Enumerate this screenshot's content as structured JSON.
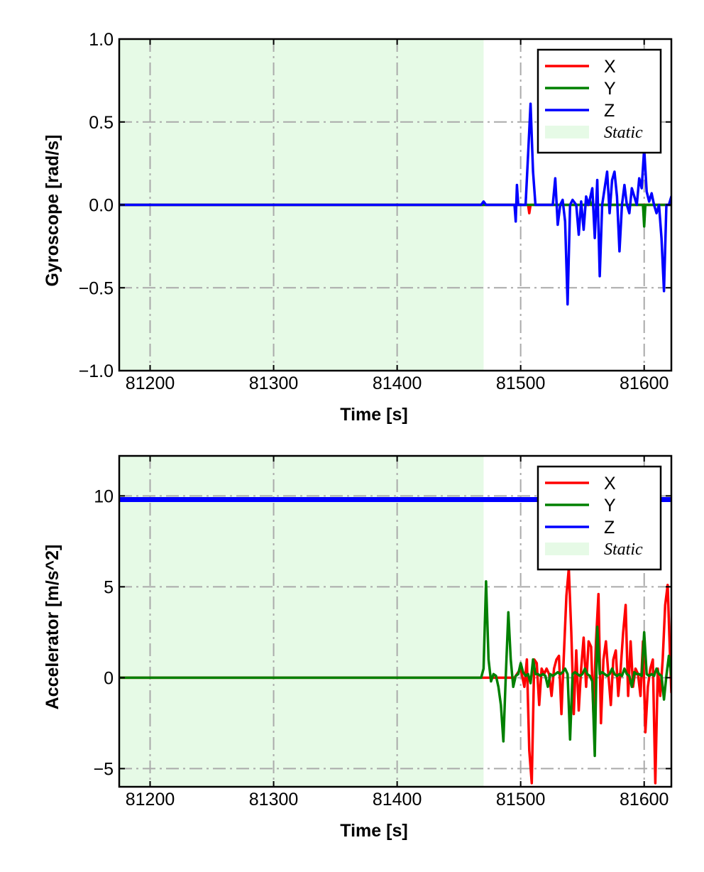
{
  "chart_data": [
    {
      "type": "line",
      "xlabel": "Time [s]",
      "ylabel": "Gyroscope [rad/s]",
      "xlim": [
        81175,
        81622
      ],
      "ylim": [
        -1.0,
        1.0
      ],
      "xticks": [
        81200,
        81300,
        81400,
        81500,
        81600
      ],
      "xtick_labels": [
        "81200",
        "81300",
        "81400",
        "81500",
        "81600"
      ],
      "yticks": [
        -1.0,
        -0.5,
        0.0,
        0.5,
        1.0
      ],
      "ytick_labels": [
        "−1.0",
        "−0.5",
        "0.0",
        "0.5",
        "1.0"
      ],
      "grid": true,
      "legend_position": "top-right",
      "static_region": {
        "label": "Static",
        "x_start": 81175,
        "x_end": 81470,
        "color": "#e6fae6"
      },
      "series": [
        {
          "name": "X",
          "color": "#ff0000",
          "x": [
            81175,
            81470,
            81495,
            81506,
            81507,
            81508,
            81510,
            81520,
            81600,
            81622
          ],
          "y": [
            0,
            0,
            0,
            0,
            -0.05,
            0,
            0,
            0,
            0,
            0
          ]
        },
        {
          "name": "Y",
          "color": "#008000",
          "x": [
            81175,
            81470,
            81555,
            81556,
            81557,
            81599,
            81600,
            81601,
            81622
          ],
          "y": [
            0,
            0,
            0,
            0.03,
            0,
            0,
            -0.13,
            0,
            0
          ]
        },
        {
          "name": "Z",
          "color": "#0000ff",
          "x": [
            81175,
            81468,
            81470,
            81472,
            81495,
            81496,
            81497,
            81498,
            81500,
            81504,
            81506,
            81508,
            81510,
            81512,
            81515,
            81520,
            81526,
            81528,
            81530,
            81532,
            81534,
            81536,
            81538,
            81540,
            81542,
            81545,
            81547,
            81549,
            81551,
            81553,
            81555,
            81558,
            81560,
            81562,
            81564,
            81566,
            81568,
            81570,
            81572,
            81574,
            81576,
            81578,
            81580,
            81582,
            81584,
            81586,
            81588,
            81590,
            81592,
            81594,
            81596,
            81598,
            81600,
            81602,
            81604,
            81606,
            81608,
            81610,
            81612,
            81614,
            81616,
            81618,
            81620,
            81622
          ],
          "y": [
            0,
            0,
            0.02,
            0,
            0,
            -0.1,
            0.12,
            0,
            0,
            0,
            0.3,
            0.61,
            0.2,
            0,
            0,
            0,
            0,
            0.16,
            -0.12,
            0,
            0.03,
            -0.1,
            -0.6,
            0,
            0.03,
            0,
            -0.18,
            0.02,
            -0.15,
            0.05,
            0,
            0.1,
            -0.2,
            0.15,
            -0.43,
            0,
            0.1,
            0.2,
            -0.05,
            0.15,
            0.2,
            0.05,
            -0.28,
            0,
            0.12,
            0,
            -0.05,
            0.1,
            0.05,
            0,
            0.16,
            0.1,
            0.34,
            0.08,
            0.02,
            0.07,
            0,
            -0.05,
            0,
            -0.2,
            -0.52,
            0,
            0,
            0.05
          ]
        }
      ]
    },
    {
      "type": "line",
      "xlabel": "Time [s]",
      "ylabel": "Accelerator [m/s^2]",
      "xlim": [
        81175,
        81622
      ],
      "ylim": [
        -6,
        12.2
      ],
      "xticks": [
        81200,
        81300,
        81400,
        81500,
        81600
      ],
      "xtick_labels": [
        "81200",
        "81300",
        "81400",
        "81500",
        "81600"
      ],
      "yticks": [
        -5,
        0,
        5,
        10
      ],
      "ytick_labels": [
        "−5",
        "0",
        "5",
        "10"
      ],
      "grid": true,
      "legend_position": "top-right",
      "static_region": {
        "label": "Static",
        "x_start": 81175,
        "x_end": 81470,
        "color": "#e6fae6"
      },
      "series": [
        {
          "name": "X",
          "color": "#ff0000",
          "x": [
            81175,
            81470,
            81480,
            81495,
            81500,
            81503,
            81505,
            81507,
            81509,
            81511,
            81513,
            81515,
            81517,
            81519,
            81521,
            81523,
            81525,
            81527,
            81529,
            81531,
            81533,
            81535,
            81537,
            81539,
            81541,
            81543,
            81545,
            81547,
            81549,
            81551,
            81553,
            81555,
            81557,
            81559,
            81561,
            81563,
            81565,
            81567,
            81569,
            81571,
            81573,
            81575,
            81577,
            81579,
            81581,
            81583,
            81585,
            81587,
            81589,
            81591,
            81593,
            81595,
            81597,
            81599,
            81601,
            81603,
            81605,
            81607,
            81609,
            81611,
            81613,
            81615,
            81617,
            81619,
            81621,
            81622
          ],
          "y": [
            0,
            0,
            0,
            0,
            0.5,
            -0.5,
            1.0,
            -4.0,
            -5.8,
            1.0,
            0.8,
            -1.5,
            0.5,
            0.2,
            0.5,
            0.2,
            -1.0,
            0.5,
            1.0,
            1.2,
            -2.0,
            1.3,
            4.5,
            6.0,
            2.5,
            -2.0,
            1.5,
            -1.8,
            0.5,
            2.2,
            -0.5,
            2.0,
            1.7,
            -2.0,
            2.0,
            4.6,
            -2.5,
            1.0,
            2.0,
            0.2,
            -1.5,
            1.0,
            1.5,
            -1.0,
            0.5,
            2.5,
            4.0,
            -1.0,
            2.0,
            -0.5,
            0.5,
            0.2,
            -1.0,
            2.0,
            -3.0,
            -0.5,
            0.5,
            1.0,
            -5.8,
            0.5,
            -1.0,
            1.0,
            4.0,
            5.1,
            1.0,
            -0.8
          ]
        },
        {
          "name": "Y",
          "color": "#008000",
          "x": [
            81175,
            81468,
            81470,
            81472,
            81474,
            81476,
            81478,
            81480,
            81482,
            81484,
            81486,
            81488,
            81490,
            81492,
            81494,
            81496,
            81498,
            81500,
            81502,
            81504,
            81506,
            81508,
            81510,
            81512,
            81514,
            81516,
            81518,
            81520,
            81522,
            81524,
            81526,
            81528,
            81530,
            81532,
            81534,
            81536,
            81538,
            81540,
            81542,
            81544,
            81546,
            81548,
            81550,
            81552,
            81554,
            81556,
            81558,
            81560,
            81562,
            81564,
            81566,
            81568,
            81570,
            81572,
            81574,
            81576,
            81578,
            81580,
            81582,
            81584,
            81586,
            81588,
            81590,
            81592,
            81594,
            81596,
            81598,
            81600,
            81602,
            81604,
            81606,
            81608,
            81610,
            81612,
            81614,
            81616,
            81618,
            81620,
            81622
          ],
          "y": [
            0,
            0,
            0.5,
            5.3,
            1.0,
            -0.2,
            0.2,
            0.1,
            -0.5,
            -1.5,
            -3.5,
            0.2,
            3.6,
            1.0,
            -0.5,
            0.1,
            0.2,
            0.8,
            0.3,
            0.1,
            0.2,
            -0.3,
            1.0,
            0.2,
            0.2,
            0.1,
            0.2,
            0.1,
            -0.5,
            0.2,
            0.1,
            0.2,
            0.3,
            0.2,
            0.3,
            0.5,
            0.2,
            -3.4,
            0.2,
            0.3,
            0.2,
            0.1,
            0.2,
            0.5,
            0.2,
            0.1,
            -0.2,
            -4.3,
            2.8,
            0.2,
            0.3,
            0.2,
            0.1,
            0.2,
            0.5,
            0.2,
            0.1,
            0.2,
            0.1,
            0.5,
            0.2,
            0.1,
            -0.5,
            0.3,
            0.2,
            0.2,
            0.1,
            2.5,
            0.2,
            0.1,
            0.2,
            0.1,
            0.5,
            0.2,
            0.1,
            -1.2,
            0.1,
            1.2,
            0.1
          ]
        },
        {
          "name": "Z",
          "color": "#0000ff",
          "x": [
            81175,
            81622
          ],
          "y": [
            9.8,
            9.8
          ]
        }
      ]
    }
  ]
}
